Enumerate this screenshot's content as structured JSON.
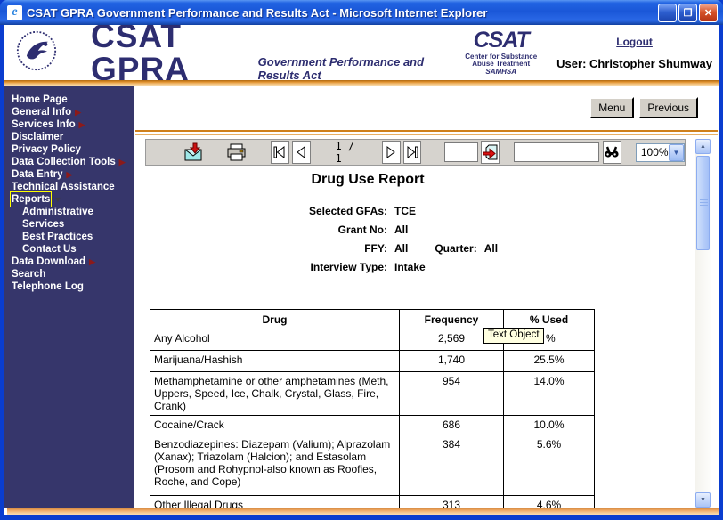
{
  "window": {
    "title": "CSAT GPRA Government Performance and Results Act - Microsoft Internet Explorer",
    "controls": {
      "minimize": "_",
      "maximize": "❐",
      "close": "✕"
    }
  },
  "header": {
    "brand": "CSAT GPRA",
    "brand_sub": "Government Performance and Results Act",
    "csat_logo": {
      "big": "CSAT",
      "line1": "Center for Substance",
      "line2": "Abuse Treatment",
      "line3": "SAMHSA"
    },
    "logout_label": "Logout",
    "user_line": "User: Christopher Shumway"
  },
  "sidebar": {
    "items": [
      {
        "label": "Home Page"
      },
      {
        "label": "General Info",
        "arrow": "right"
      },
      {
        "label": "Services Info",
        "arrow": "right"
      },
      {
        "label": "Disclaimer"
      },
      {
        "label": "Privacy Policy"
      },
      {
        "label": "Data Collection Tools",
        "arrow": "right"
      },
      {
        "label": "Data Entry",
        "arrow": "right"
      },
      {
        "label": "Technical Assistance",
        "underline": true
      },
      {
        "label": "Reports",
        "arrow": "down",
        "focused": true
      },
      {
        "label": "Administrative",
        "indent": true
      },
      {
        "label": "Services",
        "indent": true
      },
      {
        "label": "Best Practices",
        "indent": true
      },
      {
        "label": "Contact Us",
        "indent": true
      },
      {
        "label": "Data Download",
        "arrow": "right"
      },
      {
        "label": "Search"
      },
      {
        "label": "Telephone Log"
      }
    ]
  },
  "topbar": {
    "menu_label": "Menu",
    "previous_label": "Previous"
  },
  "toolbar": {
    "icons": [
      "export-icon",
      "print-icon",
      "first-page-icon",
      "prev-page-icon",
      "next-page-icon",
      "last-page-icon",
      "goto-page-icon",
      "find-icon"
    ],
    "page_indicator": "1 / 1",
    "goto_value": "",
    "search_value": "",
    "zoom_level": "100%"
  },
  "report": {
    "title": "Drug Use Report",
    "params": {
      "gfa_label": "Selected GFAs:",
      "gfa_value": "TCE",
      "grant_label": "Grant No:",
      "grant_value": "All",
      "ffy_label": "FFY:",
      "ffy_value": "All",
      "quarter_label": "Quarter:",
      "quarter_value": "All",
      "interview_label": "Interview Type:",
      "interview_value": "Intake"
    },
    "tooltip_text": "Text Object",
    "table": {
      "headers": [
        "Drug",
        "Frequency",
        "% Used"
      ],
      "rows": [
        {
          "drug": "Any Alcohol",
          "frequency": "2,569",
          "pct": "%",
          "covered_by_tooltip": true
        },
        {
          "drug": "Marijuana/Hashish",
          "frequency": "1,740",
          "pct": "25.5%"
        },
        {
          "drug": "Methamphetamine or other amphetamines (Meth, Uppers, Speed, Ice, Chalk, Crystal, Glass, Fire, Crank)",
          "frequency": "954",
          "pct": "14.0%"
        },
        {
          "drug": "Cocaine/Crack",
          "frequency": "686",
          "pct": "10.0%"
        },
        {
          "drug": "Benzodiazepines: Diazepam (Valium); Alprazolam (Xanax); Triazolam (Halcion); and Estasolam (Prosom and Rohypnol-also known as Roofies, Roche, and Cope)",
          "frequency": "384",
          "pct": "5.6%"
        },
        {
          "drug": "Other Illegal Drugs",
          "frequency": "313",
          "pct": "4.6%"
        }
      ]
    }
  },
  "colors": {
    "titlebar_blue": "#1a57d8",
    "window_border_blue": "#0a3dcf",
    "sidebar_navy": "#36366b",
    "brand_navy": "#2d2d70",
    "orange_stripe": "#e0912d",
    "toolbar_gray": "#d6d3ce",
    "tooltip_yellow": "#ffffe1",
    "focus_yellow": "#ffff00",
    "arrow_maroon": "#8b1a1a"
  }
}
